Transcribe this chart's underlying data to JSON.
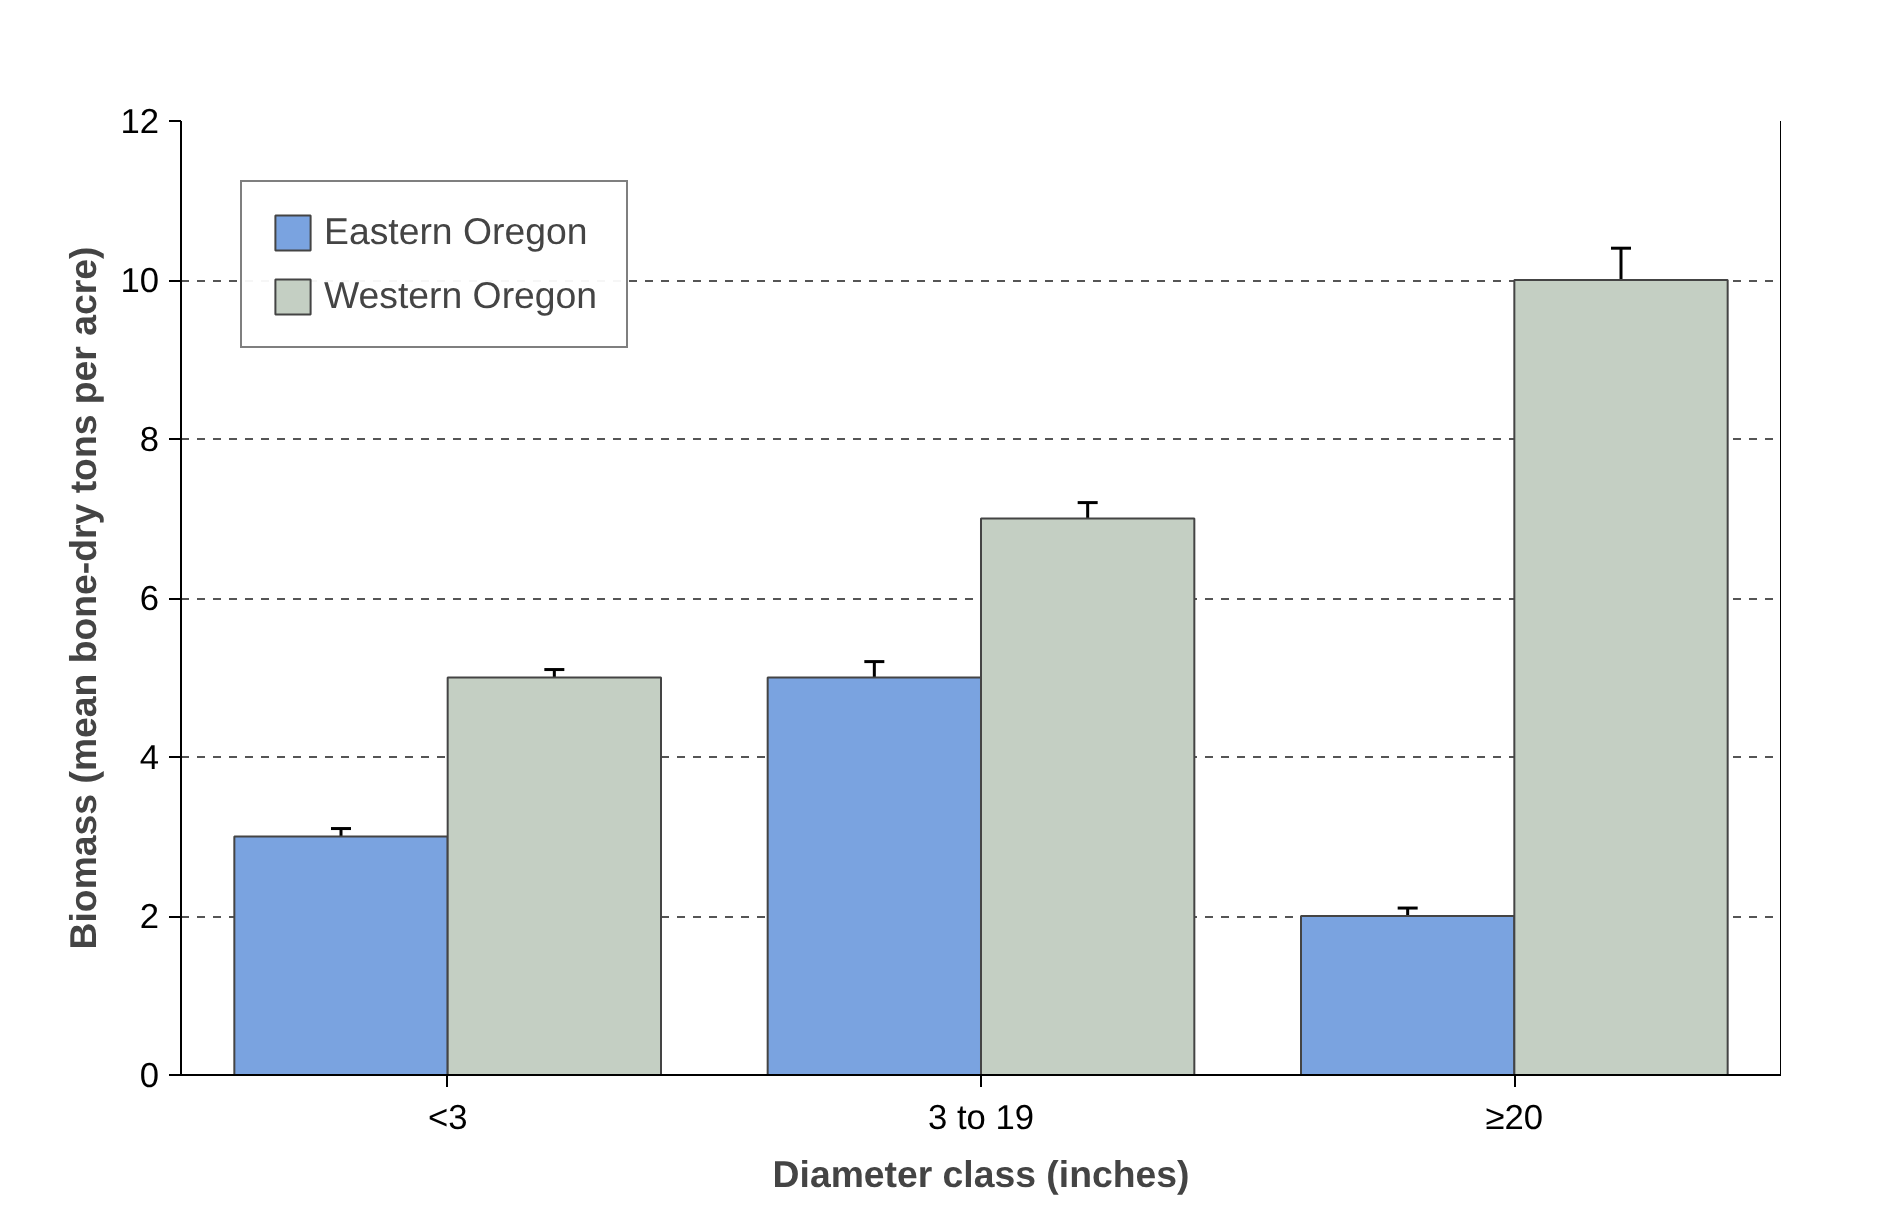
{
  "chart_data": {
    "type": "bar",
    "xlabel": "Diameter class (inches)",
    "ylabel": "Biomass (mean bone-dry tons per acre)",
    "categories": [
      "<3",
      "3 to 19",
      "≥20"
    ],
    "series": [
      {
        "name": "Eastern Oregon",
        "color": "#7aa3e0",
        "values": [
          3,
          5,
          2
        ],
        "errors": [
          0.1,
          0.2,
          0.1
        ]
      },
      {
        "name": "Western Oregon",
        "color": "#c4cfc3",
        "values": [
          5,
          7,
          10
        ],
        "errors": [
          0.1,
          0.2,
          0.4
        ]
      }
    ],
    "ylim": [
      0,
      12
    ],
    "yticks": [
      0,
      2,
      4,
      6,
      8,
      10,
      12
    ],
    "grid": "y",
    "legend": "top left"
  }
}
